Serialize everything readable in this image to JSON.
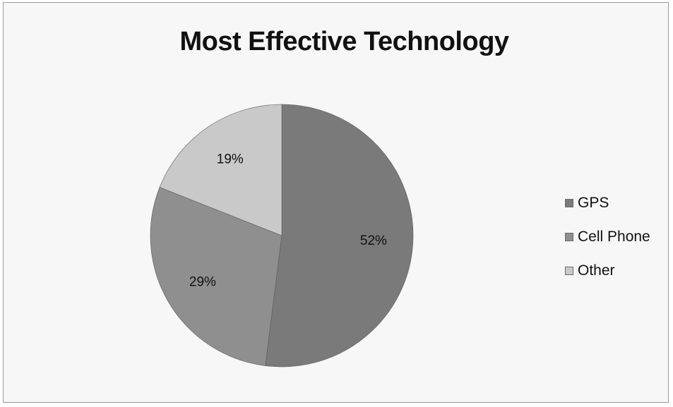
{
  "chart_data": {
    "type": "pie",
    "title": "Most Effective Technology",
    "categories": [
      "GPS",
      "Cell Phone",
      "Other"
    ],
    "values": [
      52,
      29,
      19
    ],
    "data_labels": [
      "52%",
      "29%",
      "19%"
    ],
    "colors": [
      "#7a7a7a",
      "#8f8f8f",
      "#c9c9c9"
    ],
    "start_angle_deg": 0,
    "direction": "clockwise",
    "legend_position": "right"
  }
}
